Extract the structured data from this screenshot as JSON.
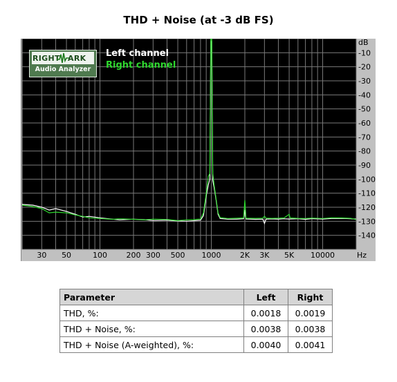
{
  "chart_data": {
    "type": "line",
    "title": "THD + Noise (at -3 dB FS)",
    "xscale": "log",
    "xlim": [
      20,
      20000
    ],
    "ylim": [
      -150,
      0
    ],
    "ylabel": "dB",
    "xlabel": "Hz",
    "x_ticks": [
      {
        "value": 30,
        "label": "30"
      },
      {
        "value": 50,
        "label": "50"
      },
      {
        "value": 100,
        "label": "100"
      },
      {
        "value": 200,
        "label": "200"
      },
      {
        "value": 300,
        "label": "300"
      },
      {
        "value": 500,
        "label": "500"
      },
      {
        "value": 1000,
        "label": "1000"
      },
      {
        "value": 2000,
        "label": "2K"
      },
      {
        "value": 3000,
        "label": "3K"
      },
      {
        "value": 5000,
        "label": "5K"
      },
      {
        "value": 10000,
        "label": "10000"
      }
    ],
    "y_ticks": [
      {
        "value": -10,
        "label": "-10"
      },
      {
        "value": -20,
        "label": "-20"
      },
      {
        "value": -30,
        "label": "-30"
      },
      {
        "value": -40,
        "label": "-40"
      },
      {
        "value": -50,
        "label": "-50"
      },
      {
        "value": -60,
        "label": "-60"
      },
      {
        "value": -70,
        "label": "-70"
      },
      {
        "value": -80,
        "label": "-80"
      },
      {
        "value": -90,
        "label": "-90"
      },
      {
        "value": -100,
        "label": "-100"
      },
      {
        "value": -110,
        "label": "-110"
      },
      {
        "value": -120,
        "label": "-120"
      },
      {
        "value": -130,
        "label": "-130"
      },
      {
        "value": -140,
        "label": "-140"
      }
    ],
    "grid": true,
    "background_color": "#000000",
    "grid_color": "#7a7a7a",
    "legend": [
      "Left channel",
      "Right channel"
    ],
    "series": [
      {
        "name": "Left channel",
        "color": "#ffffff",
        "points": [
          [
            20,
            -118
          ],
          [
            25,
            -118.5
          ],
          [
            30,
            -120
          ],
          [
            35,
            -122
          ],
          [
            40,
            -121
          ],
          [
            50,
            -123
          ],
          [
            60,
            -125
          ],
          [
            70,
            -127
          ],
          [
            80,
            -126.5
          ],
          [
            100,
            -127.5
          ],
          [
            130,
            -128.5
          ],
          [
            150,
            -129
          ],
          [
            200,
            -128.5
          ],
          [
            250,
            -128.8
          ],
          [
            300,
            -129.5
          ],
          [
            400,
            -129.2
          ],
          [
            500,
            -129.8
          ],
          [
            600,
            -130
          ],
          [
            700,
            -129.6
          ],
          [
            800,
            -129.2
          ],
          [
            850,
            -126
          ],
          [
            900,
            -112
          ],
          [
            940,
            -104
          ],
          [
            970,
            -100
          ],
          [
            990,
            -2
          ],
          [
            1010,
            -2
          ],
          [
            1030,
            -101
          ],
          [
            1060,
            -106
          ],
          [
            1100,
            -114
          ],
          [
            1150,
            -125
          ],
          [
            1200,
            -128
          ],
          [
            1400,
            -128.5
          ],
          [
            1700,
            -128.5
          ],
          [
            1950,
            -128.2
          ],
          [
            2000,
            -122
          ],
          [
            2050,
            -128.4
          ],
          [
            2500,
            -128.6
          ],
          [
            2900,
            -128.5
          ],
          [
            3000,
            -131.5
          ],
          [
            3100,
            -128.5
          ],
          [
            3500,
            -128.3
          ],
          [
            4000,
            -128.5
          ],
          [
            4500,
            -128.2
          ],
          [
            5000,
            -128.4
          ],
          [
            6000,
            -128.2
          ],
          [
            7000,
            -128.6
          ],
          [
            8000,
            -128.1
          ],
          [
            10000,
            -128.4
          ],
          [
            12000,
            -128
          ],
          [
            15000,
            -127.9
          ],
          [
            18000,
            -128.2
          ],
          [
            20000,
            -128.4
          ]
        ]
      },
      {
        "name": "Right channel",
        "color": "#2ed82e",
        "points": [
          [
            20,
            -118.5
          ],
          [
            25,
            -119.5
          ],
          [
            30,
            -121
          ],
          [
            35,
            -124
          ],
          [
            40,
            -123.5
          ],
          [
            50,
            -124
          ],
          [
            60,
            -125.5
          ],
          [
            70,
            -126.5
          ],
          [
            80,
            -127.5
          ],
          [
            100,
            -128
          ],
          [
            130,
            -128.6
          ],
          [
            150,
            -128.2
          ],
          [
            200,
            -128.6
          ],
          [
            250,
            -128.9
          ],
          [
            300,
            -128.5
          ],
          [
            400,
            -128.7
          ],
          [
            500,
            -129.5
          ],
          [
            600,
            -129
          ],
          [
            700,
            -128.8
          ],
          [
            800,
            -128.4
          ],
          [
            850,
            -124
          ],
          [
            900,
            -110
          ],
          [
            940,
            -98
          ],
          [
            970,
            -96
          ],
          [
            990,
            2
          ],
          [
            1010,
            2
          ],
          [
            1030,
            -96
          ],
          [
            1060,
            -104
          ],
          [
            1100,
            -113
          ],
          [
            1150,
            -124
          ],
          [
            1200,
            -127.4
          ],
          [
            1400,
            -128
          ],
          [
            1700,
            -127.8
          ],
          [
            1950,
            -127.6
          ],
          [
            2000,
            -115
          ],
          [
            2050,
            -127.8
          ],
          [
            2500,
            -127.9
          ],
          [
            2900,
            -127.8
          ],
          [
            3000,
            -126.4
          ],
          [
            3100,
            -127.8
          ],
          [
            3500,
            -127.9
          ],
          [
            4000,
            -127.8
          ],
          [
            4500,
            -127.6
          ],
          [
            5000,
            -125
          ],
          [
            5100,
            -127.6
          ],
          [
            6000,
            -127.9
          ],
          [
            7000,
            -128
          ],
          [
            8000,
            -127.7
          ],
          [
            10000,
            -128
          ],
          [
            12000,
            -127.5
          ],
          [
            15000,
            -127.6
          ],
          [
            18000,
            -127.9
          ],
          [
            20000,
            -128.8
          ]
        ]
      }
    ]
  },
  "logo": {
    "text_left": "RIGHT",
    "text_right": "ARK",
    "text_bottom": "Audio Analyzer"
  },
  "table": {
    "headers": [
      "Parameter",
      "Left",
      "Right"
    ],
    "rows": [
      {
        "label": "THD, %:",
        "left": "0.0018",
        "right": "0.0019"
      },
      {
        "label": "THD + Noise, %:",
        "left": "0.0038",
        "right": "0.0038"
      },
      {
        "label": "THD + Noise (A-weighted), %:",
        "left": "0.0040",
        "right": "0.0041"
      }
    ]
  }
}
